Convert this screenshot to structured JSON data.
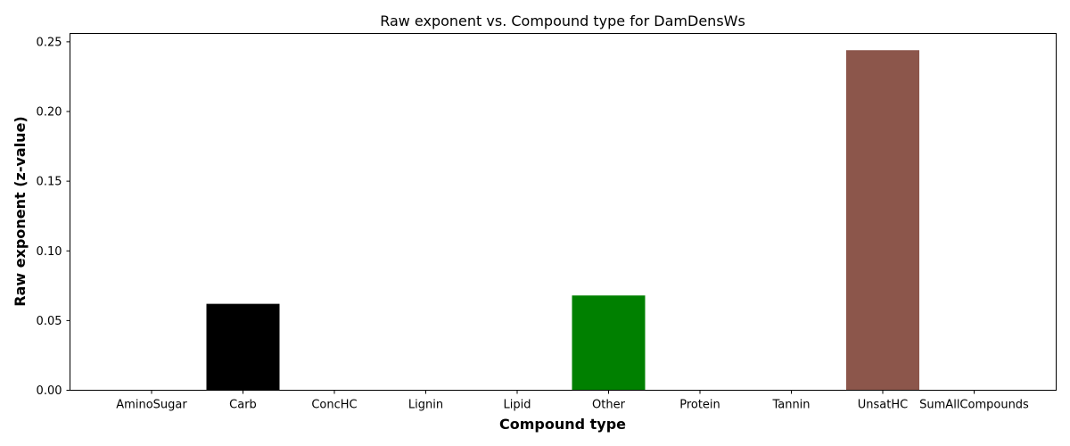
{
  "chart_data": {
    "type": "bar",
    "title": "Raw exponent vs. Compound type for DamDensWs",
    "xlabel": "Compound type",
    "ylabel": "Raw exponent (z-value)",
    "categories": [
      "AminoSugar",
      "Carb",
      "ConcHC",
      "Lignin",
      "Lipid",
      "Other",
      "Protein",
      "Tannin",
      "UnsatHC",
      "SumAllCompounds"
    ],
    "values": [
      0,
      0.062,
      0,
      0,
      0,
      0.068,
      0,
      0,
      0.244,
      0
    ],
    "colors": [
      "#1f77b4",
      "#000000",
      "#1f77b4",
      "#1f77b4",
      "#1f77b4",
      "#008000",
      "#1f77b4",
      "#1f77b4",
      "#8c564b",
      "#1f77b4"
    ],
    "ylim": [
      0,
      0.256
    ],
    "yticks": [
      0.0,
      0.05,
      0.1,
      0.15,
      0.2,
      0.25
    ],
    "ytick_labels": [
      "0.00",
      "0.05",
      "0.10",
      "0.15",
      "0.20",
      "0.25"
    ],
    "grid": false,
    "legend": "none"
  }
}
